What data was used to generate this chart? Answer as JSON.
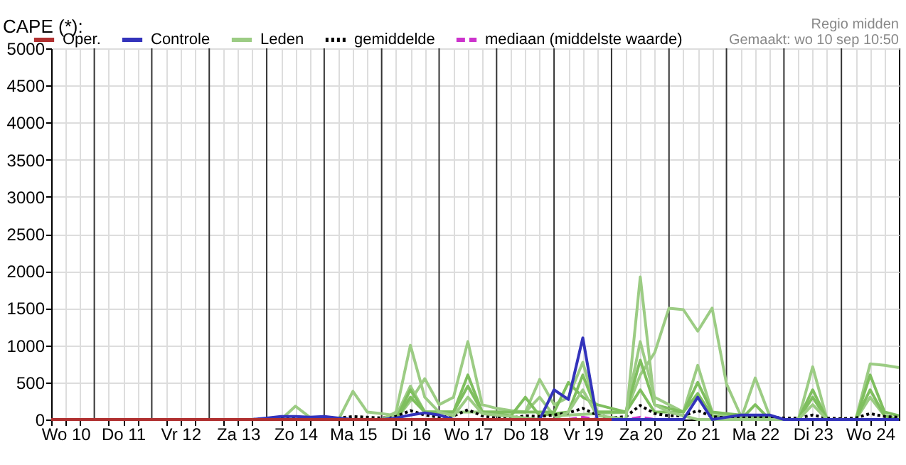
{
  "chart_data": {
    "type": "line",
    "title": "CAPE (*):",
    "annotations": [
      "Regio midden",
      "Gemaakt: wo 10 sep 10:50"
    ],
    "x": [
      "--09-10T06:00",
      "--09-10T12:00",
      "--09-10T18:00",
      "--09-11T00:00",
      "--09-11T06:00",
      "--09-11T12:00",
      "--09-11T18:00",
      "--09-12T00:00",
      "--09-12T06:00",
      "--09-12T12:00",
      "--09-12T18:00",
      "--09-13T00:00",
      "--09-13T06:00",
      "--09-13T12:00",
      "--09-13T18:00",
      "--09-14T00:00",
      "--09-14T06:00",
      "--09-14T12:00",
      "--09-14T18:00",
      "--09-15T00:00",
      "--09-15T06:00",
      "--09-15T12:00",
      "--09-15T18:00",
      "--09-16T00:00",
      "--09-16T06:00",
      "--09-16T12:00",
      "--09-16T18:00",
      "--09-17T00:00",
      "--09-17T06:00",
      "--09-17T12:00",
      "--09-17T18:00",
      "--09-18T00:00",
      "--09-18T06:00",
      "--09-18T12:00",
      "--09-18T18:00",
      "--09-19T00:00",
      "--09-19T06:00",
      "--09-19T12:00",
      "--09-19T18:00",
      "--09-20T00:00",
      "--09-20T06:00",
      "--09-20T12:00",
      "--09-20T18:00",
      "--09-21T00:00",
      "--09-21T06:00",
      "--09-21T12:00",
      "--09-21T18:00",
      "--09-22T00:00",
      "--09-22T06:00",
      "--09-22T12:00",
      "--09-22T18:00",
      "--09-23T00:00",
      "--09-23T06:00",
      "--09-23T12:00",
      "--09-23T18:00",
      "--09-24T00:00",
      "--09-24T06:00",
      "--09-24T12:00",
      "--09-24T18:00",
      "--09-25T00:00"
    ],
    "xlim": [
      "--09-10T06:00",
      "--09-25T00:00"
    ],
    "ylim": [
      0,
      5000
    ],
    "yticks": [
      0,
      500,
      1000,
      1500,
      2000,
      2500,
      3000,
      3500,
      4000,
      4500,
      5000
    ],
    "xticks": [
      {
        "value": "--09-10T06:00",
        "label": null
      },
      {
        "value": "--09-10T12:00",
        "label": "Wo 10"
      },
      {
        "value": "--09-10T18:00",
        "label": null
      },
      {
        "value": "--09-11T06:00",
        "label": null
      },
      {
        "value": "--09-11T12:00",
        "label": "Do 11"
      },
      {
        "value": "--09-11T18:00",
        "label": null
      },
      {
        "value": "--09-12T06:00",
        "label": null
      },
      {
        "value": "--09-12T12:00",
        "label": "Vr 12"
      },
      {
        "value": "--09-12T18:00",
        "label": null
      },
      {
        "value": "--09-13T06:00",
        "label": null
      },
      {
        "value": "--09-13T12:00",
        "label": "Za 13"
      },
      {
        "value": "--09-13T18:00",
        "label": null
      },
      {
        "value": "--09-14T06:00",
        "label": null
      },
      {
        "value": "--09-14T12:00",
        "label": "Zo 14"
      },
      {
        "value": "--09-14T18:00",
        "label": null
      },
      {
        "value": "--09-15T06:00",
        "label": null
      },
      {
        "value": "--09-15T12:00",
        "label": "Ma 15"
      },
      {
        "value": "--09-15T18:00",
        "label": null
      },
      {
        "value": "--09-16T06:00",
        "label": null
      },
      {
        "value": "--09-16T12:00",
        "label": "Di 16"
      },
      {
        "value": "--09-16T18:00",
        "label": null
      },
      {
        "value": "--09-17T06:00",
        "label": null
      },
      {
        "value": "--09-17T12:00",
        "label": "Wo 17"
      },
      {
        "value": "--09-17T18:00",
        "label": null
      },
      {
        "value": "--09-18T06:00",
        "label": null
      },
      {
        "value": "--09-18T12:00",
        "label": "Do 18"
      },
      {
        "value": "--09-18T18:00",
        "label": null
      },
      {
        "value": "--09-19T06:00",
        "label": null
      },
      {
        "value": "--09-19T12:00",
        "label": "Vr 19"
      },
      {
        "value": "--09-19T18:00",
        "label": null
      },
      {
        "value": "--09-20T06:00",
        "label": null
      },
      {
        "value": "--09-20T12:00",
        "label": "Za 20"
      },
      {
        "value": "--09-20T18:00",
        "label": null
      },
      {
        "value": "--09-21T06:00",
        "label": null
      },
      {
        "value": "--09-21T12:00",
        "label": "Zo 21"
      },
      {
        "value": "--09-21T18:00",
        "label": null
      },
      {
        "value": "--09-22T06:00",
        "label": null
      },
      {
        "value": "--09-22T12:00",
        "label": "Ma 22"
      },
      {
        "value": "--09-22T18:00",
        "label": null
      },
      {
        "value": "--09-23T06:00",
        "label": null
      },
      {
        "value": "--09-23T12:00",
        "label": "Di 23"
      },
      {
        "value": "--09-23T18:00",
        "label": null
      },
      {
        "value": "--09-24T06:00",
        "label": null
      },
      {
        "value": "--09-24T12:00",
        "label": "Wo 24"
      },
      {
        "value": "--09-24T18:00",
        "label": null
      }
    ],
    "ref_lines": [
      {
        "axis": "x",
        "value": "--09-11T00:00",
        "color": "#333333"
      },
      {
        "axis": "x",
        "value": "--09-12T00:00",
        "color": "#333333"
      },
      {
        "axis": "x",
        "value": "--09-13T00:00",
        "color": "#333333"
      },
      {
        "axis": "x",
        "value": "--09-14T00:00",
        "color": "#333333"
      },
      {
        "axis": "x",
        "value": "--09-15T00:00",
        "color": "#333333"
      },
      {
        "axis": "x",
        "value": "--09-16T00:00",
        "color": "#333333"
      },
      {
        "axis": "x",
        "value": "--09-17T00:00",
        "color": "#333333"
      },
      {
        "axis": "x",
        "value": "--09-18T00:00",
        "color": "#333333"
      },
      {
        "axis": "x",
        "value": "--09-19T00:00",
        "color": "#333333"
      },
      {
        "axis": "x",
        "value": "--09-20T00:00",
        "color": "#333333"
      },
      {
        "axis": "x",
        "value": "--09-21T00:00",
        "color": "#333333"
      },
      {
        "axis": "x",
        "value": "--09-22T00:00",
        "color": "#333333"
      },
      {
        "axis": "x",
        "value": "--09-23T00:00",
        "color": "#333333"
      },
      {
        "axis": "x",
        "value": "--09-24T00:00",
        "color": "#333333"
      }
    ],
    "grid": true,
    "legend": "top",
    "marker": "none",
    "series": [
      {
        "name": "Oper.",
        "color": "#b03030",
        "values": [
          0,
          0,
          0,
          0,
          0,
          0,
          0,
          0,
          0,
          0,
          0,
          0,
          0,
          0,
          0,
          0,
          0,
          0,
          0,
          0,
          0,
          0,
          0,
          0,
          0,
          0,
          0,
          0,
          0,
          0,
          0,
          0,
          0,
          0,
          0,
          0,
          0,
          0,
          0,
          0,
          null,
          null,
          null,
          null,
          null,
          null,
          null,
          null,
          null,
          null,
          null,
          null,
          null,
          null,
          null,
          null,
          null,
          null,
          null,
          null
        ]
      },
      {
        "name": "Controle",
        "color": "#3333bb",
        "values": [
          null,
          null,
          null,
          null,
          null,
          null,
          null,
          null,
          null,
          null,
          null,
          null,
          null,
          0,
          0,
          20,
          40,
          40,
          30,
          40,
          20,
          0,
          0,
          0,
          20,
          60,
          90,
          60,
          0,
          0,
          0,
          0,
          0,
          0,
          0,
          400,
          270,
          1100,
          0,
          0,
          0,
          0,
          0,
          0,
          0,
          300,
          0,
          30,
          60,
          60,
          60,
          0,
          0,
          0,
          0,
          0,
          0,
          0,
          0,
          0
        ]
      },
      {
        "name": "Leden",
        "color": "#9ccc84",
        "values": [
          null,
          null,
          null,
          null,
          null,
          null,
          0,
          0,
          0,
          0,
          0,
          0,
          0,
          0,
          0,
          0,
          0,
          0,
          0,
          0,
          0,
          0,
          0,
          0,
          100,
          1000,
          300,
          100,
          50,
          300,
          80,
          60,
          40,
          20,
          0,
          0,
          100,
          400,
          50,
          30,
          0,
          1920,
          200,
          100,
          50,
          0,
          0,
          0,
          0,
          0,
          0,
          0,
          0,
          200,
          0,
          0,
          0,
          0,
          0,
          0
        ]
      },
      {
        "color": "#9ccc84",
        "values": [
          null,
          null,
          null,
          null,
          null,
          null,
          0,
          0,
          0,
          0,
          0,
          0,
          0,
          0,
          0,
          0,
          0,
          180,
          30,
          0,
          0,
          0,
          0,
          0,
          0,
          250,
          550,
          200,
          300,
          1050,
          200,
          150,
          120,
          100,
          300,
          50,
          60,
          70,
          80,
          90,
          100,
          600,
          900,
          1500,
          1480,
          1190,
          1500,
          480,
          50,
          0,
          0,
          0,
          0,
          0,
          0,
          0,
          0,
          300,
          50,
          0
        ]
      },
      {
        "color": "#9ccc84",
        "values": [
          null,
          null,
          null,
          null,
          null,
          null,
          0,
          0,
          0,
          0,
          0,
          0,
          0,
          0,
          0,
          0,
          0,
          0,
          0,
          0,
          0,
          380,
          100,
          80,
          50,
          450,
          100,
          100,
          100,
          100,
          100,
          100,
          100,
          100,
          540,
          200,
          300,
          770,
          100,
          100,
          100,
          1050,
          300,
          200,
          100,
          730,
          100,
          50,
          0,
          560,
          50,
          0,
          0,
          710,
          0,
          0,
          0,
          750,
          730,
          700
        ]
      },
      {
        "color": "#7fbf5f",
        "values": [
          null,
          null,
          null,
          null,
          null,
          null,
          null,
          null,
          null,
          null,
          null,
          null,
          null,
          null,
          null,
          null,
          null,
          null,
          null,
          0,
          0,
          0,
          0,
          0,
          0,
          400,
          100,
          100,
          100,
          600,
          100,
          100,
          100,
          100,
          100,
          100,
          500,
          300,
          200,
          150,
          100,
          800,
          200,
          150,
          100,
          500,
          100,
          80,
          60,
          40,
          20,
          0,
          0,
          400,
          0,
          0,
          0,
          600,
          100,
          50
        ]
      },
      {
        "color": "#7fbf5f",
        "values": [
          null,
          null,
          null,
          null,
          null,
          null,
          null,
          null,
          null,
          null,
          null,
          null,
          null,
          null,
          null,
          null,
          null,
          null,
          null,
          0,
          0,
          0,
          0,
          0,
          0,
          300,
          100,
          100,
          100,
          450,
          100,
          80,
          50,
          300,
          50,
          80,
          100,
          600,
          100,
          100,
          100,
          400,
          100,
          100,
          100,
          350,
          50,
          20,
          0,
          200,
          0,
          0,
          0,
          300,
          0,
          0,
          0,
          400,
          50,
          0
        ]
      },
      {
        "name": "gemiddelde",
        "color": "#000000",
        "line_style": "dotted",
        "values": [
          null,
          null,
          null,
          null,
          null,
          null,
          null,
          null,
          null,
          null,
          null,
          null,
          null,
          null,
          0,
          10,
          20,
          30,
          20,
          20,
          20,
          40,
          30,
          20,
          40,
          120,
          60,
          30,
          50,
          130,
          50,
          20,
          20,
          50,
          40,
          60,
          90,
          150,
          60,
          20,
          40,
          190,
          80,
          50,
          50,
          120,
          40,
          20,
          20,
          40,
          30,
          20,
          20,
          60,
          20,
          10,
          20,
          80,
          40,
          30
        ]
      },
      {
        "name": "mediaan (middelste waarde)",
        "color": "#cc33cc",
        "line_style": "dashed",
        "values": [
          null,
          null,
          null,
          null,
          null,
          null,
          null,
          null,
          null,
          null,
          null,
          null,
          null,
          null,
          null,
          null,
          null,
          null,
          null,
          null,
          null,
          null,
          null,
          null,
          null,
          null,
          null,
          null,
          null,
          null,
          null,
          null,
          null,
          null,
          null,
          null,
          0,
          30,
          0,
          0,
          0,
          30,
          0,
          null,
          null,
          null,
          null,
          null,
          null,
          null,
          null,
          null,
          null,
          null,
          null,
          null,
          null,
          null,
          null,
          null
        ]
      }
    ]
  }
}
